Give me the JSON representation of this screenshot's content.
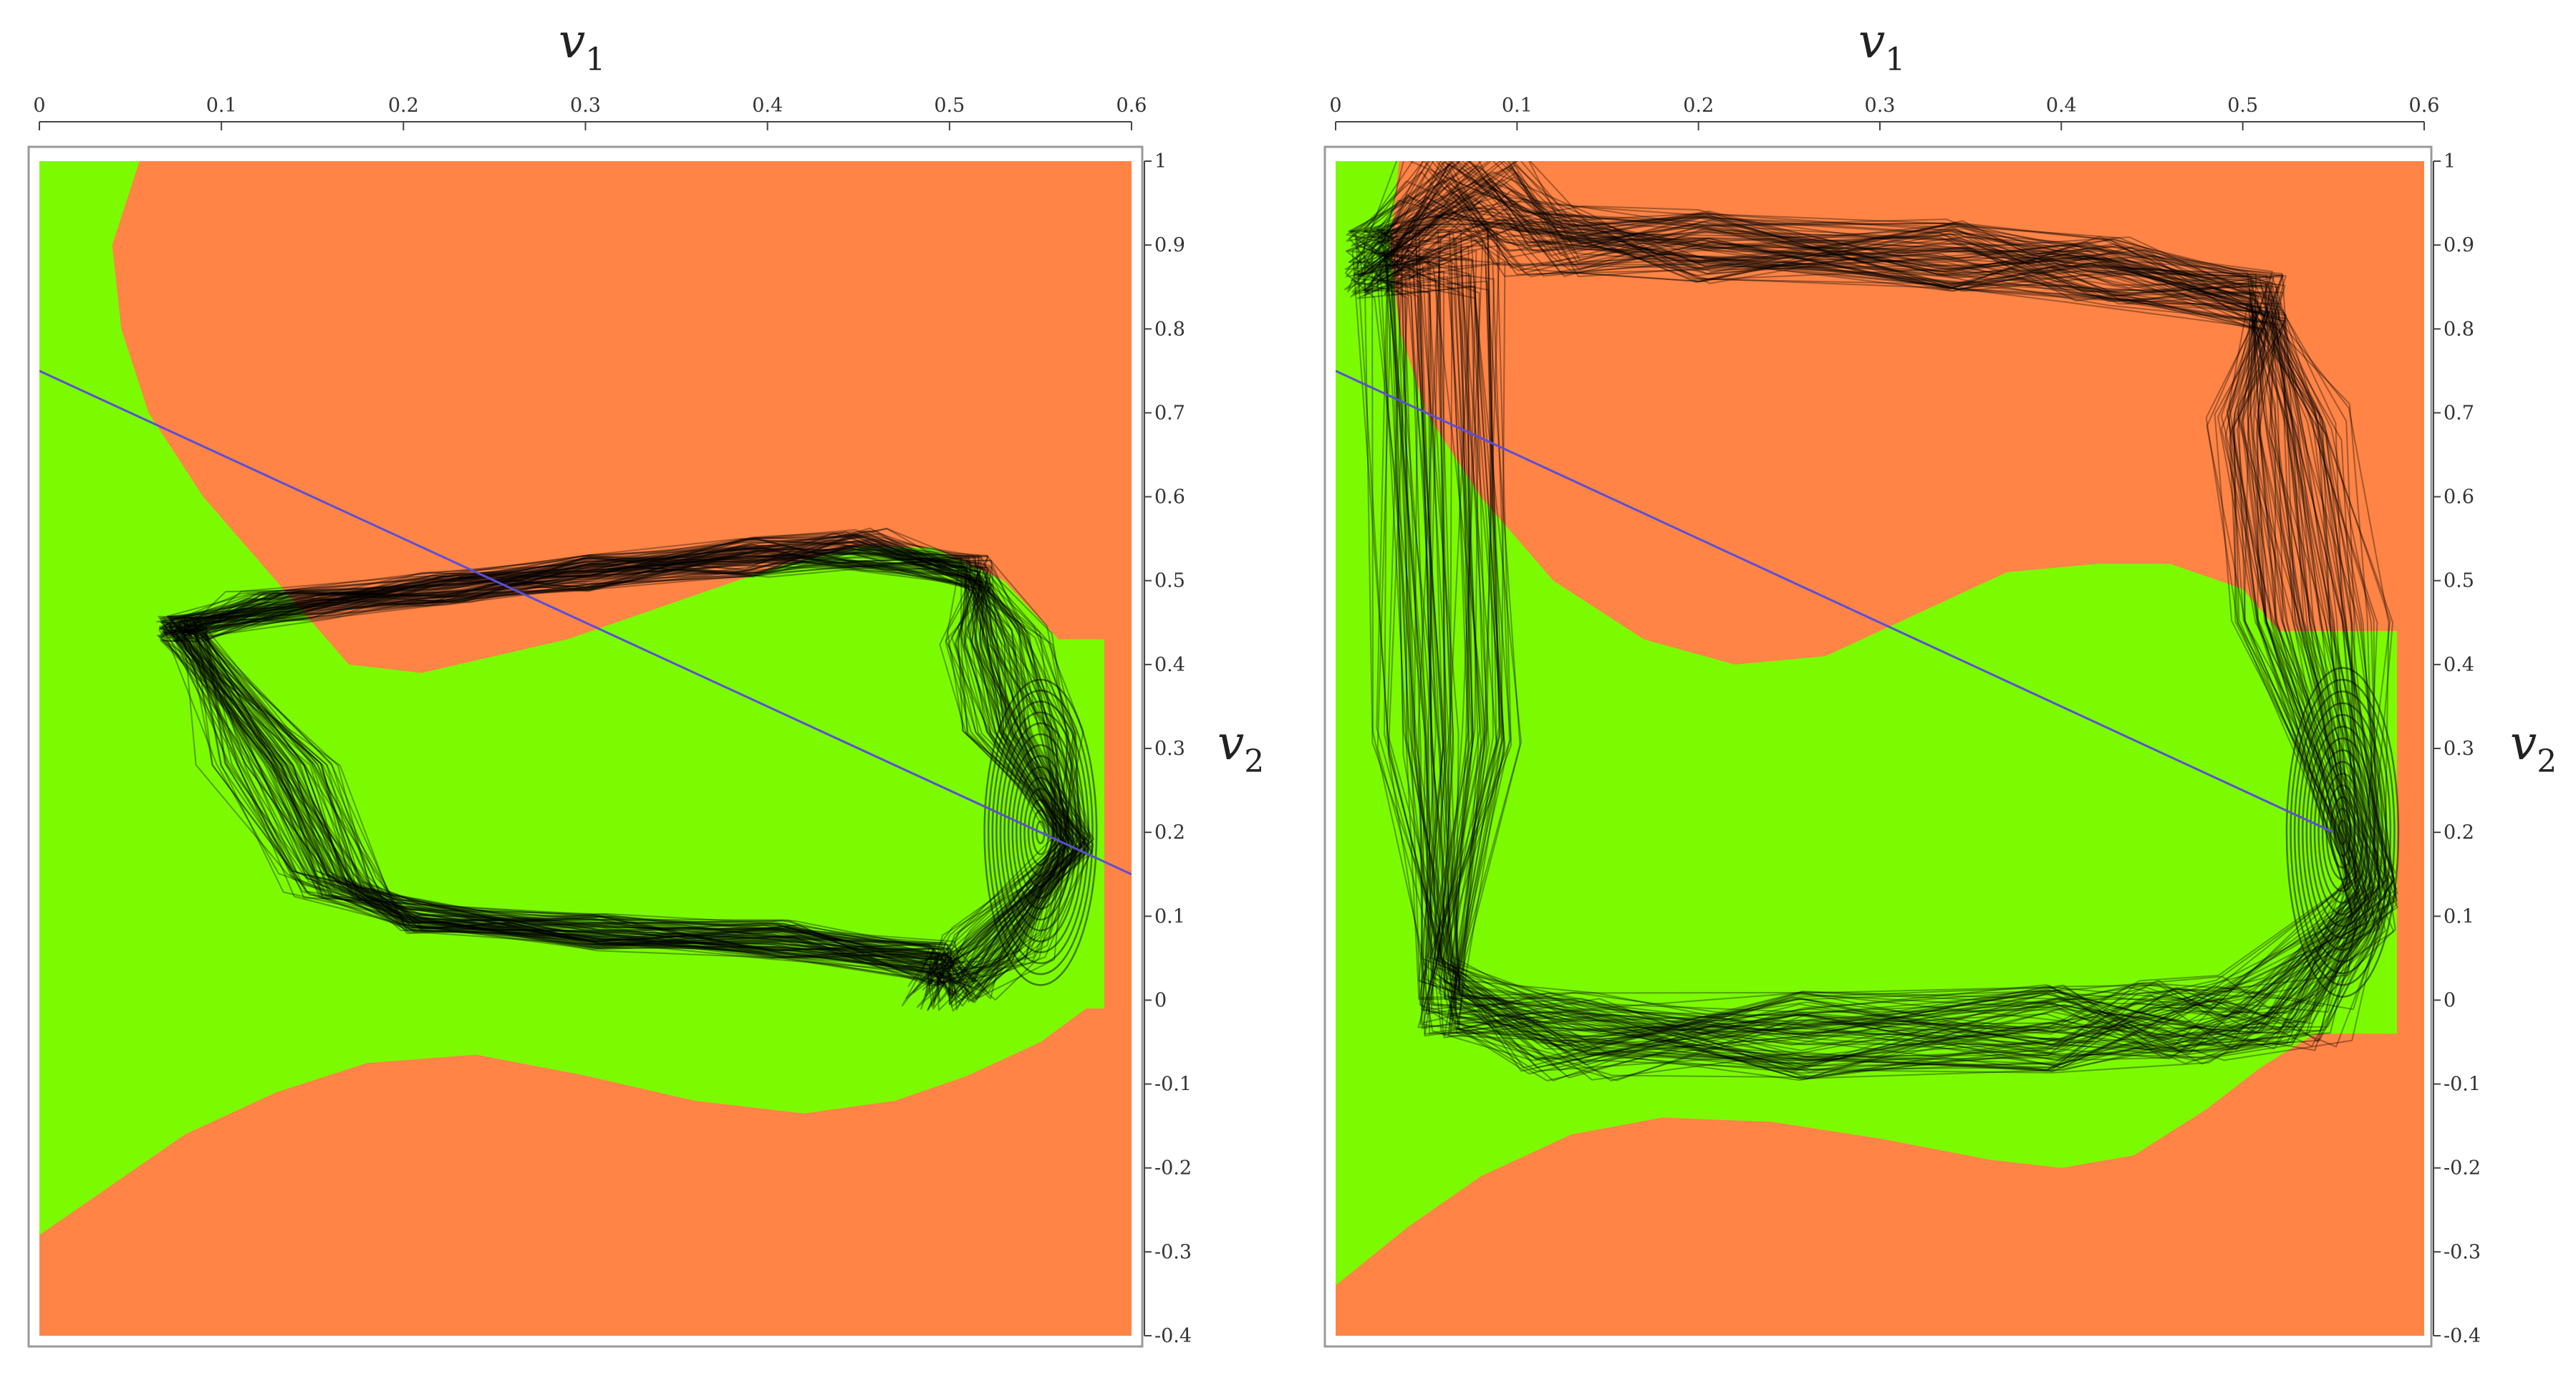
{
  "colors": {
    "green_region": "#7cfb00",
    "orange_region": "#ff8446",
    "trajectory": "#000000",
    "line": "#5a4fd6",
    "axis": "#444444"
  },
  "chart_data": [
    {
      "type": "line",
      "panel": "left",
      "xlabel_main": "v",
      "xlabel_sub": "1",
      "ylabel_main": "v",
      "ylabel_sub": "2",
      "xlim": [
        0,
        0.6
      ],
      "ylim": [
        -0.4,
        1
      ],
      "x_ticks": [
        "0",
        "0.1",
        "0.2",
        "0.3",
        "0.4",
        "0.5",
        "0.6"
      ],
      "y_ticks": [
        "-0.4",
        "-0.3",
        "-0.2",
        "-0.1",
        "0",
        "0.1",
        "0.2",
        "0.3",
        "0.4",
        "0.5",
        "0.6",
        "0.7",
        "0.8",
        "0.9",
        "1"
      ],
      "line": {
        "x": [
          0,
          0.6
        ],
        "y": [
          0.75,
          0.15
        ]
      },
      "regions": {
        "orange_upper_boundary": {
          "x": [
            0.055,
            0.04,
            0.045,
            0.06,
            0.09,
            0.13,
            0.17,
            0.21,
            0.25,
            0.29,
            0.33,
            0.37,
            0.41,
            0.45,
            0.49,
            0.53,
            0.56
          ],
          "y": [
            1.0,
            0.9,
            0.8,
            0.7,
            0.6,
            0.5,
            0.4,
            0.39,
            0.41,
            0.43,
            0.46,
            0.49,
            0.52,
            0.54,
            0.54,
            0.5,
            0.43
          ]
        },
        "orange_lower_boundary": {
          "x": [
            0,
            0.04,
            0.08,
            0.13,
            0.18,
            0.24,
            0.3,
            0.36,
            0.42,
            0.47,
            0.51,
            0.55,
            0.575
          ],
          "y": [
            -0.28,
            -0.22,
            -0.16,
            -0.11,
            -0.075,
            -0.065,
            -0.09,
            -0.12,
            -0.135,
            -0.12,
            -0.09,
            -0.05,
            -0.01
          ]
        }
      },
      "attractor": {
        "x": [
          0.07,
          0.1,
          0.2,
          0.3,
          0.4,
          0.47,
          0.52,
          0.555,
          0.575,
          0.575,
          0.555,
          0.53,
          0.5,
          0.42,
          0.3,
          0.2,
          0.13,
          0.09,
          0.07
        ],
        "y": [
          0.45,
          0.48,
          0.5,
          0.52,
          0.54,
          0.55,
          0.52,
          0.44,
          0.32,
          0.18,
          0.05,
          0.0,
          0.03,
          0.06,
          0.07,
          0.09,
          0.13,
          0.28,
          0.45
        ]
      }
    },
    {
      "type": "line",
      "panel": "right",
      "xlabel_main": "v",
      "xlabel_sub": "1",
      "ylabel_main": "v",
      "ylabel_sub": "2",
      "xlim": [
        0,
        0.6
      ],
      "ylim": [
        -0.4,
        1
      ],
      "x_ticks": [
        "0",
        "0.1",
        "0.2",
        "0.3",
        "0.4",
        "0.5",
        "0.6"
      ],
      "y_ticks": [
        "-0.4",
        "-0.3",
        "-0.2",
        "-0.1",
        "0",
        "0.1",
        "0.2",
        "0.3",
        "0.4",
        "0.5",
        "0.6",
        "0.7",
        "0.8",
        "0.9",
        "1"
      ],
      "line": {
        "x": [
          0,
          0.55
        ],
        "y": [
          0.75,
          0.2
        ]
      },
      "regions": {
        "orange_upper_boundary": {
          "x": [
            0.035,
            0.03,
            0.035,
            0.05,
            0.08,
            0.12,
            0.17,
            0.22,
            0.27,
            0.32,
            0.37,
            0.42,
            0.46,
            0.5,
            0.52
          ],
          "y": [
            1.0,
            0.9,
            0.8,
            0.7,
            0.6,
            0.5,
            0.43,
            0.4,
            0.41,
            0.46,
            0.51,
            0.52,
            0.52,
            0.49,
            0.44
          ]
        },
        "orange_lower_boundary": {
          "x": [
            0,
            0.04,
            0.08,
            0.13,
            0.18,
            0.24,
            0.3,
            0.36,
            0.4,
            0.44,
            0.48,
            0.51,
            0.54
          ],
          "y": [
            -0.34,
            -0.27,
            -0.21,
            -0.16,
            -0.14,
            -0.145,
            -0.165,
            -0.19,
            -0.2,
            -0.185,
            -0.13,
            -0.08,
            -0.04
          ]
        }
      },
      "attractor": {
        "x": [
          0.01,
          0.03,
          0.08,
          0.2,
          0.35,
          0.45,
          0.52,
          0.56,
          0.58,
          0.58,
          0.56,
          0.5,
          0.4,
          0.25,
          0.1,
          0.05,
          0.02,
          0.01
        ],
        "y": [
          0.9,
          1.0,
          0.93,
          0.92,
          0.91,
          0.89,
          0.85,
          0.7,
          0.45,
          0.1,
          -0.04,
          -0.05,
          -0.06,
          -0.07,
          -0.07,
          -0.02,
          0.3,
          0.9
        ]
      }
    }
  ]
}
